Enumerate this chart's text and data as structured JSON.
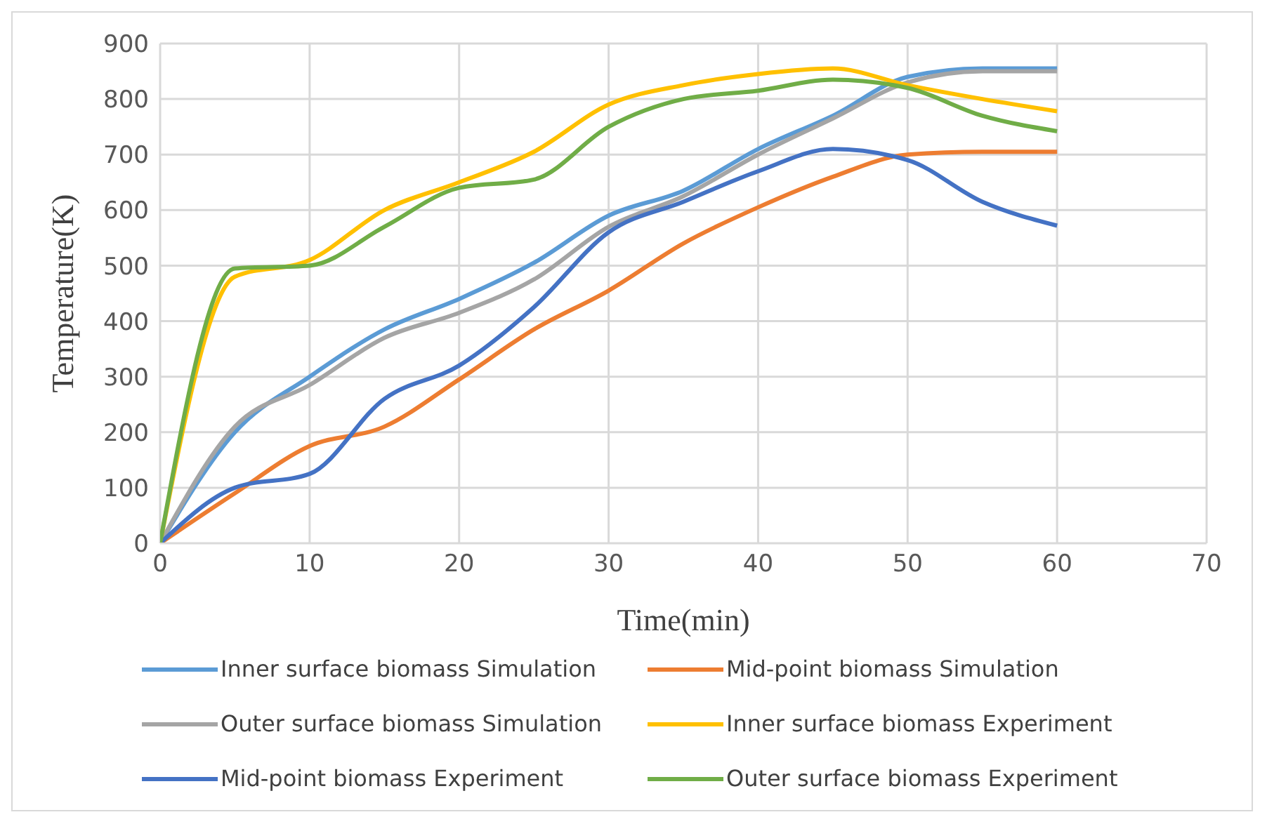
{
  "chart_data": {
    "type": "line",
    "xlabel": "Time(min)",
    "ylabel": "Temperature(K)",
    "x": [
      0,
      5,
      10,
      15,
      20,
      25,
      30,
      35,
      40,
      45,
      50,
      55,
      60
    ],
    "xlim": [
      0,
      70
    ],
    "xticks": [
      0,
      10,
      20,
      30,
      40,
      50,
      60,
      70
    ],
    "ylim": [
      0,
      900
    ],
    "yticks": [
      0,
      100,
      200,
      300,
      400,
      500,
      600,
      700,
      800,
      900
    ],
    "grid": true,
    "legend": "bottom",
    "marker": "none",
    "line_style": "solid",
    "series": [
      {
        "name": "Inner surface biomass Simulation",
        "color": "#5b9bd5",
        "values": [
          0,
          200,
          300,
          385,
          440,
          505,
          590,
          635,
          710,
          770,
          840,
          855,
          855
        ]
      },
      {
        "name": "Mid-point biomass Simulation",
        "color": "#ed7d31",
        "values": [
          0,
          90,
          175,
          210,
          295,
          385,
          455,
          540,
          605,
          660,
          700,
          705,
          705
        ]
      },
      {
        "name": "Outer surface biomass Simulation",
        "color": "#a5a5a5",
        "values": [
          0,
          210,
          285,
          370,
          415,
          475,
          570,
          625,
          700,
          765,
          830,
          850,
          850
        ]
      },
      {
        "name": "Inner surface biomass Experiment",
        "color": "#ffc000",
        "values": [
          0,
          480,
          510,
          600,
          650,
          705,
          790,
          825,
          845,
          855,
          825,
          800,
          778
        ]
      },
      {
        "name": "Mid-point biomass Experiment",
        "color": "#4472c4",
        "values": [
          0,
          100,
          125,
          260,
          320,
          425,
          560,
          615,
          670,
          710,
          690,
          615,
          572
        ]
      },
      {
        "name": "Outer surface biomass Experiment",
        "color": "#70ad47",
        "values": [
          0,
          495,
          500,
          570,
          640,
          655,
          750,
          800,
          815,
          835,
          820,
          770,
          742
        ]
      }
    ]
  }
}
